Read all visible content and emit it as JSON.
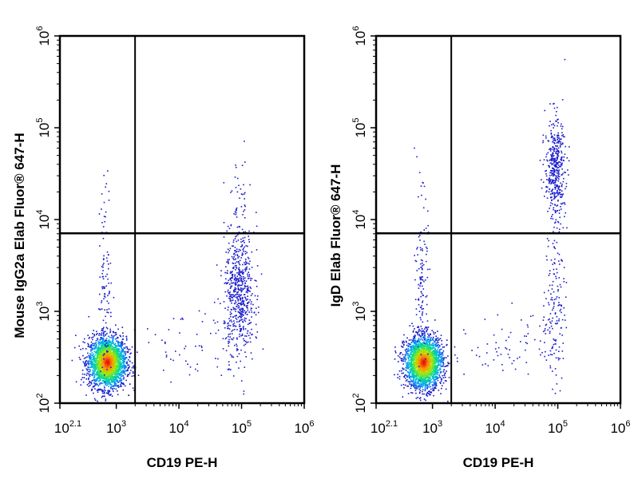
{
  "chart_data": [
    {
      "type": "scatter",
      "title": "",
      "xlabel": "CD19 PE-H",
      "ylabel": "Mouse IgG2a Elab Fluor® 647-H",
      "x_scale": "log",
      "y_scale": "log",
      "xlim_log10": [
        2.1,
        6
      ],
      "ylim_log10": [
        2,
        6
      ],
      "x_tick_labels": [
        {
          "base": "10",
          "exp": "2.1"
        },
        {
          "base": "10",
          "exp": "3"
        },
        {
          "base": "10",
          "exp": "4"
        },
        {
          "base": "10",
          "exp": "5"
        },
        {
          "base": "10",
          "exp": "6"
        }
      ],
      "y_tick_labels": [
        {
          "base": "10",
          "exp": "2"
        },
        {
          "base": "10",
          "exp": "3"
        },
        {
          "base": "10",
          "exp": "4"
        },
        {
          "base": "10",
          "exp": "5"
        },
        {
          "base": "10",
          "exp": "6"
        }
      ],
      "quadrant_gate_log10": {
        "x": 3.3,
        "y": 3.85
      },
      "grid": false,
      "populations": [
        {
          "center_log10": [
            2.85,
            2.45
          ],
          "spread_log10": [
            0.15,
            0.14
          ],
          "count": 2400,
          "dense": true
        },
        {
          "center_log10": [
            2.82,
            3.3
          ],
          "spread_log10": [
            0.05,
            0.55
          ],
          "count": 110,
          "dense": false
        },
        {
          "center_log10": [
            4.95,
            3.2
          ],
          "spread_log10": [
            0.12,
            0.35
          ],
          "count": 620,
          "dense": false
        },
        {
          "center_log10": [
            4.95,
            4.25
          ],
          "spread_log10": [
            0.1,
            0.22
          ],
          "count": 35,
          "dense": false
        },
        {
          "center_log10": [
            4.2,
            2.6
          ],
          "spread_log10": [
            0.45,
            0.25
          ],
          "count": 60,
          "dense": false
        }
      ]
    },
    {
      "type": "scatter",
      "title": "",
      "xlabel": "CD19 PE-H",
      "ylabel": "IgD Elab Fluor® 647-H",
      "x_scale": "log",
      "y_scale": "log",
      "xlim_log10": [
        2.1,
        6
      ],
      "ylim_log10": [
        2,
        6
      ],
      "x_tick_labels": [
        {
          "base": "10",
          "exp": "2.1"
        },
        {
          "base": "10",
          "exp": "3"
        },
        {
          "base": "10",
          "exp": "4"
        },
        {
          "base": "10",
          "exp": "5"
        },
        {
          "base": "10",
          "exp": "6"
        }
      ],
      "y_tick_labels": [
        {
          "base": "10",
          "exp": "2"
        },
        {
          "base": "10",
          "exp": "3"
        },
        {
          "base": "10",
          "exp": "4"
        },
        {
          "base": "10",
          "exp": "5"
        },
        {
          "base": "10",
          "exp": "6"
        }
      ],
      "quadrant_gate_log10": {
        "x": 3.3,
        "y": 3.85
      },
      "grid": false,
      "populations": [
        {
          "center_log10": [
            2.85,
            2.45
          ],
          "spread_log10": [
            0.15,
            0.14
          ],
          "count": 2400,
          "dense": true
        },
        {
          "center_log10": [
            2.82,
            3.35
          ],
          "spread_log10": [
            0.05,
            0.45
          ],
          "count": 130,
          "dense": false
        },
        {
          "center_log10": [
            4.95,
            4.55
          ],
          "spread_log10": [
            0.08,
            0.28
          ],
          "count": 430,
          "dense": false
        },
        {
          "center_log10": [
            4.95,
            3.1
          ],
          "spread_log10": [
            0.08,
            0.45
          ],
          "count": 150,
          "dense": false
        },
        {
          "center_log10": [
            4.3,
            2.65
          ],
          "spread_log10": [
            0.35,
            0.18
          ],
          "count": 70,
          "dense": false
        }
      ]
    }
  ]
}
